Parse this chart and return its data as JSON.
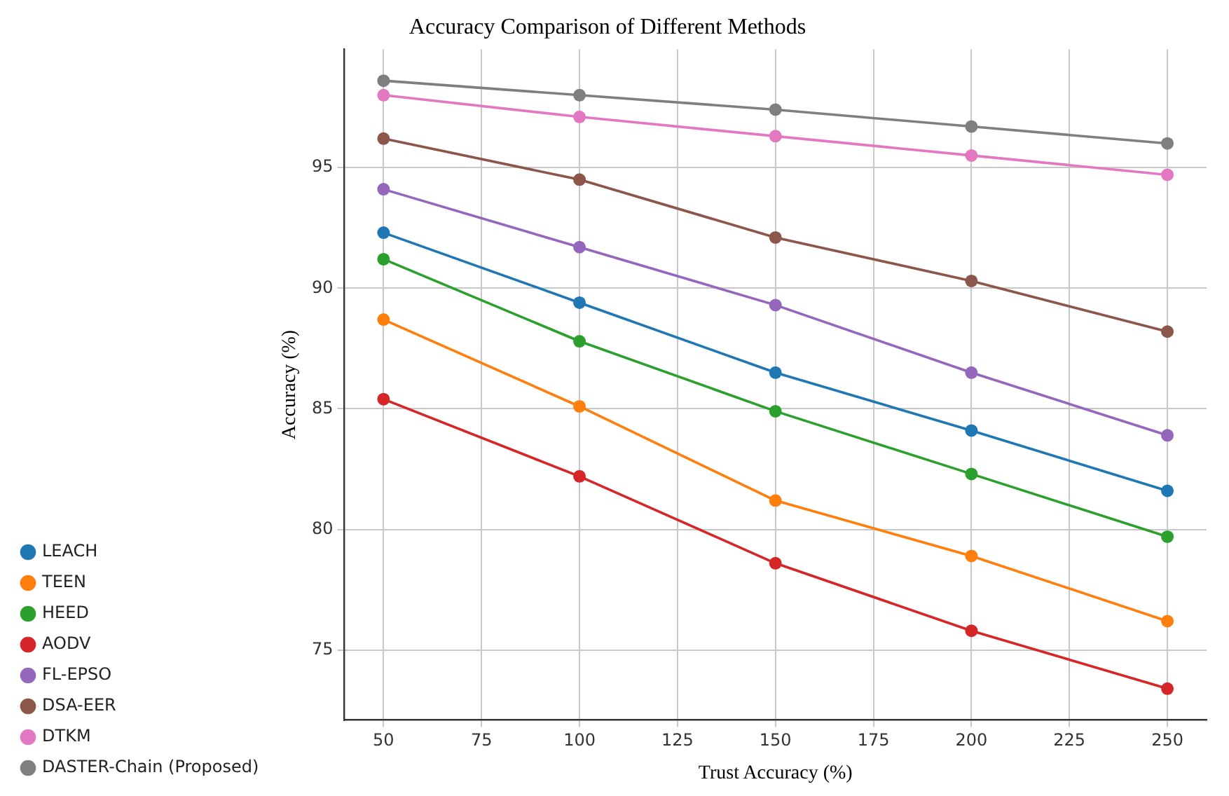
{
  "chart_data": {
    "type": "line",
    "title": "Accuracy Comparison of Different Methods",
    "xlabel": "Trust Accuracy (%)",
    "ylabel": "Accuracy (%)",
    "x": [
      50,
      100,
      150,
      200,
      250
    ],
    "series": [
      {
        "name": "LEACH",
        "color": "#1f77b4",
        "values": [
          92.3,
          89.4,
          86.5,
          84.1,
          81.6
        ]
      },
      {
        "name": "TEEN",
        "color": "#ff7f0e",
        "values": [
          88.7,
          85.1,
          81.2,
          78.9,
          76.2
        ]
      },
      {
        "name": "HEED",
        "color": "#2ca02c",
        "values": [
          91.2,
          87.8,
          84.9,
          82.3,
          79.7
        ]
      },
      {
        "name": "AODV",
        "color": "#d62728",
        "values": [
          85.4,
          82.2,
          78.6,
          75.8,
          73.4
        ]
      },
      {
        "name": "FL-EPSO",
        "color": "#9467bd",
        "values": [
          94.1,
          91.7,
          89.3,
          86.5,
          83.9
        ]
      },
      {
        "name": "DSA-EER",
        "color": "#8c564b",
        "values": [
          96.2,
          94.5,
          92.1,
          90.3,
          88.2
        ]
      },
      {
        "name": "DTKM",
        "color": "#e377c2",
        "values": [
          98.0,
          97.1,
          96.3,
          95.5,
          94.7
        ]
      },
      {
        "name": "DASTER-Chain (Proposed)",
        "color": "#7f7f7f",
        "values": [
          98.6,
          98.0,
          97.4,
          96.7,
          96.0
        ]
      }
    ],
    "xlim": [
      40,
      260
    ],
    "xticks": [
      50,
      75,
      100,
      125,
      150,
      175,
      200,
      225,
      250
    ],
    "ylim": [
      72.1,
      99.9
    ],
    "yticks": [
      75,
      80,
      85,
      90,
      95
    ],
    "grid": true,
    "legend": "bottom left",
    "marker": "circle",
    "line_style": "solid"
  }
}
